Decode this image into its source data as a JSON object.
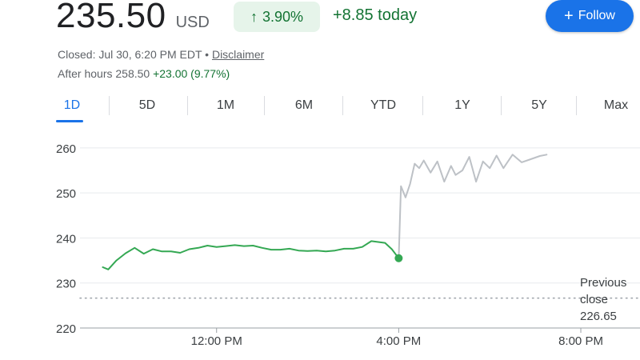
{
  "quote": {
    "price": "235.50",
    "currency": "USD",
    "change_percent": "3.90%",
    "change_arrow_icon": "arrow-up-icon",
    "change_today": "+8.85 today",
    "follow_label": "Follow",
    "follow_icon": "plus-icon",
    "status": "Closed: Jul 30, 6:20 PM EDT •",
    "disclaimer": "Disclaimer",
    "after_hours_label": "After hours 258.50",
    "after_hours_change": "+23.00 (9.77%)"
  },
  "tabs": [
    {
      "label": "1D",
      "active": true
    },
    {
      "label": "5D"
    },
    {
      "label": "1M"
    },
    {
      "label": "6M"
    },
    {
      "label": "YTD"
    },
    {
      "label": "1Y"
    },
    {
      "label": "5Y"
    },
    {
      "label": "Max"
    }
  ],
  "colors": {
    "regular_line": "#34a853",
    "after_hours_line": "#bdc1c6",
    "accent": "#1a73e8",
    "positive": "#137333"
  },
  "chart_data": {
    "type": "line",
    "title": "",
    "xlabel": "",
    "ylabel": "",
    "ylim": [
      220,
      263
    ],
    "yticks": [
      220,
      230,
      240,
      250,
      260
    ],
    "xticks": [
      "12:00 PM",
      "4:00 PM",
      "8:00 PM"
    ],
    "x_unit": "hours after 12:00 AM EDT",
    "xtick_values": [
      12,
      16,
      20
    ],
    "xlim": [
      9,
      21.3
    ],
    "previous_close": 226.65,
    "previous_close_label": [
      "Previous",
      "close",
      "226.65"
    ],
    "series": [
      {
        "name": "",
        "session": "regular",
        "x": [
          9.5,
          9.62,
          9.8,
          10.0,
          10.2,
          10.4,
          10.6,
          10.8,
          11.0,
          11.2,
          11.4,
          11.6,
          11.8,
          12.0,
          12.2,
          12.4,
          12.6,
          12.8,
          13.0,
          13.2,
          13.4,
          13.6,
          13.8,
          14.0,
          14.2,
          14.4,
          14.6,
          14.8,
          15.0,
          15.2,
          15.4,
          15.55,
          15.7,
          15.85,
          16.0
        ],
        "y": [
          233.5,
          233.0,
          235.0,
          236.6,
          237.8,
          236.5,
          237.5,
          237.0,
          237.0,
          236.7,
          237.5,
          237.8,
          238.3,
          238.0,
          238.2,
          238.4,
          238.2,
          238.3,
          237.8,
          237.4,
          237.4,
          237.6,
          237.2,
          237.1,
          237.2,
          237.0,
          237.2,
          237.6,
          237.6,
          238.0,
          239.3,
          239.1,
          238.9,
          237.5,
          235.5
        ]
      },
      {
        "name": "",
        "session": "after-hours",
        "x": [
          16.0,
          16.05,
          16.15,
          16.25,
          16.35,
          16.45,
          16.55,
          16.7,
          16.85,
          17.0,
          17.15,
          17.25,
          17.4,
          17.55,
          17.7,
          17.85,
          18.0,
          18.15,
          18.3,
          18.5,
          18.7,
          18.9,
          19.1,
          19.25
        ],
        "y": [
          235.5,
          251.5,
          249.0,
          252.0,
          256.5,
          255.5,
          257.2,
          254.5,
          257.0,
          252.5,
          256.0,
          254.0,
          255.0,
          258.0,
          252.5,
          257.0,
          255.5,
          258.3,
          255.5,
          258.5,
          256.8,
          257.5,
          258.2,
          258.5
        ]
      }
    ],
    "last_regular_point": {
      "x": 16.0,
      "y": 235.5
    }
  }
}
